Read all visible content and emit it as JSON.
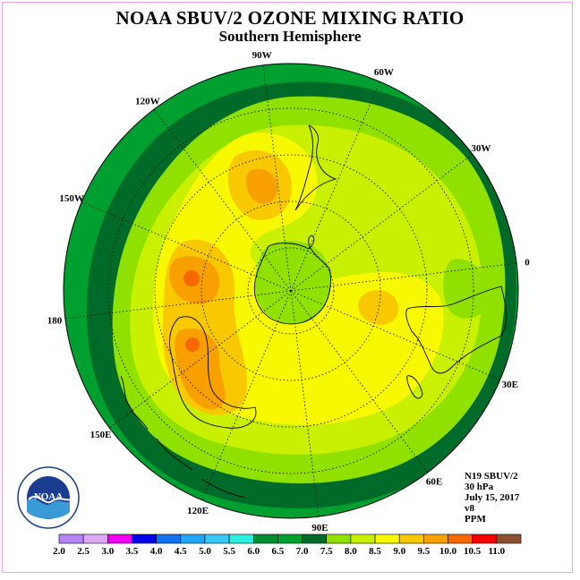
{
  "title": "NOAA SBUV/2 OZONE MIXING RATIO",
  "subtitle": "Southern Hemisphere",
  "info": {
    "satellite": "N19 SBUV/2",
    "pressure": "30 hPa",
    "date": "July 15, 2017",
    "version": "v8",
    "units": "PPM"
  },
  "logo_text": "NOAA",
  "longitude_labels": [
    "90W",
    "60W",
    "30W",
    "0",
    "30E",
    "60E",
    "90E",
    "120E",
    "150E",
    "180",
    "150W",
    "120W"
  ],
  "colorbar": {
    "ticks": [
      "2.0",
      "2.5",
      "3.0",
      "3.5",
      "4.0",
      "4.5",
      "5.0",
      "5.5",
      "6.0",
      "6.5",
      "7.0",
      "7.5",
      "8.0",
      "8.5",
      "9.0",
      "9.5",
      "10.0",
      "10.5",
      "11.0"
    ],
    "colors": [
      "#b484f4",
      "#dca8f4",
      "#f000f0",
      "#0000e8",
      "#0f72f0",
      "#23a5f5",
      "#3ac8f7",
      "#2bf0df",
      "#008c30",
      "#00a030",
      "#006a28",
      "#90e000",
      "#c8f000",
      "#f8f800",
      "#f8c800",
      "#f8a000",
      "#f86800",
      "#f80000",
      "#8c5030"
    ]
  },
  "colors": {
    "outer_ring": "#00a030",
    "dark_band": "#006a28",
    "level_7_5": "#90e000",
    "level_8_0": "#c8f000",
    "level_8_5": "#f8f800",
    "level_9_0": "#f8c800",
    "level_9_5": "#f8a000",
    "level_10_0": "#f86800",
    "frame_border": "#e8a8e8"
  }
}
